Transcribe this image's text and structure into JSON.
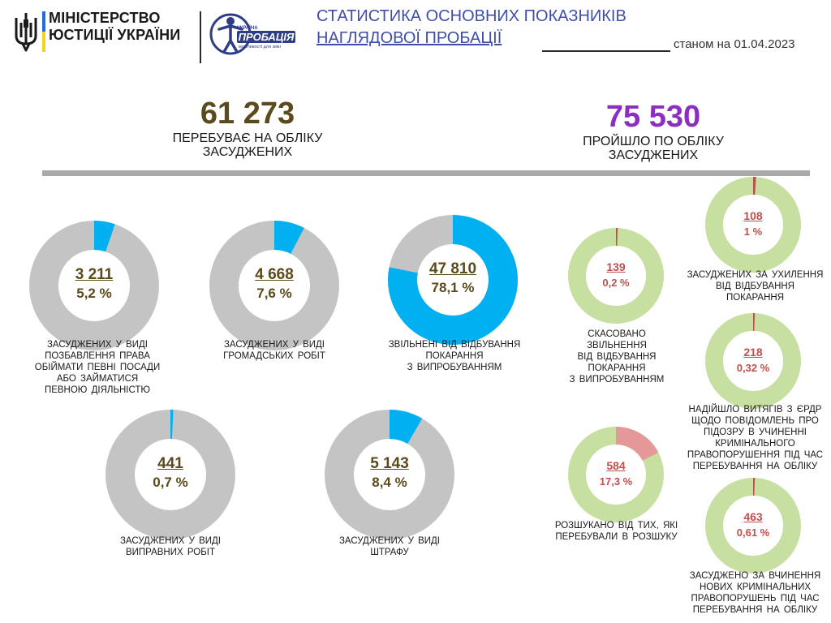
{
  "header": {
    "ministry_line1": "МІНІСТЕРСТВО",
    "ministry_line2": "ЮСТИЦІЇ УКРАЇНИ",
    "logo_text_top": "УКРАЇНА",
    "logo_text_main": "ПРОБАЦІЯ",
    "logo_text_bottom": "можливості для змін",
    "title_line1": "СТАТИСТИКА ОСНОВНИХ ПОКАЗНИКІВ",
    "title_line2": "НАГЛЯДОВОЇ ПРОБАЦІЇ",
    "as_of": "станом на 01.04.2023"
  },
  "colors": {
    "title": "#3f4fa8",
    "left_total": "#5b4a1c",
    "right_total": "#8a2fbf",
    "ring_bg_grey": "#c4c4c4",
    "ring_bg_green": "#c8dfa2",
    "accent_blue": "#00b0f0",
    "accent_red": "#c0504d",
    "accent_pink": "#e59898"
  },
  "chart_data": [
    {
      "type": "kpi",
      "value": "61 273",
      "caption_line1": "ПЕРЕБУВАЄ НА ОБЛІКУ",
      "caption_line2": "ЗАСУДЖЕНИХ"
    },
    {
      "type": "kpi",
      "value": "75 530",
      "caption_line1": "ПРОЙШЛО ПО ОБЛІКУ",
      "caption_line2": "ЗАСУДЖЕНИХ"
    },
    {
      "type": "pie",
      "group": "left",
      "count": "3 211",
      "percent": "5,2 %",
      "share": 0.052,
      "label_lines": [
        "ЗАСУДЖЕНИХ У ВИДІ",
        "ПОЗБАВЛЕННЯ ПРАВА",
        "ОБІЙМАТИ ПЕВНІ ПОСАДИ",
        "АБО ЗАЙМАТИСЯ",
        "ПЕВНОЮ ДІЯЛЬНІСТЮ"
      ]
    },
    {
      "type": "pie",
      "group": "left",
      "count": "4 668",
      "percent": "7,6 %",
      "share": 0.076,
      "label_lines": [
        "ЗАСУДЖЕНИХ У ВИДІ",
        "ГРОМАДСЬКИХ РОБІТ"
      ]
    },
    {
      "type": "pie",
      "group": "left",
      "count": "47 810",
      "percent": "78,1 %",
      "share": 0.781,
      "label_lines": [
        "ЗВІЛЬНЕНІ ВІД ВІДБУВАННЯ",
        "ПОКАРАННЯ",
        "З ВИПРОБУВАННЯМ"
      ]
    },
    {
      "type": "pie",
      "group": "left",
      "count": "441",
      "percent": "0,7 %",
      "share": 0.007,
      "label_lines": [
        "ЗАСУДЖЕНИХ У ВИДІ",
        "ВИПРАВНИХ РОБІТ"
      ]
    },
    {
      "type": "pie",
      "group": "left",
      "count": "5 143",
      "percent": "8,4 %",
      "share": 0.084,
      "label_lines": [
        "ЗАСУДЖЕНИХ У ВИДІ",
        "ШТРАФУ"
      ]
    },
    {
      "type": "pie",
      "group": "right",
      "count": "139",
      "percent": "0,2 %",
      "share": 0.002,
      "label_lines": [
        "СКАСОВАНО",
        "ЗВІЛЬНЕННЯ",
        "ВІД ВІДБУВАННЯ",
        "ПОКАРАННЯ",
        "З ВИПРОБУВАННЯМ"
      ]
    },
    {
      "type": "pie",
      "group": "right",
      "count": "108",
      "percent": "1 %",
      "share": 0.01,
      "label_lines": [
        "ЗАСУДЖЕНИХ ЗА УХИЛЕННЯ",
        "ВІД ВІДБУВАННЯ",
        "ПОКАРАННЯ"
      ]
    },
    {
      "type": "pie",
      "group": "right",
      "count": "218",
      "percent": "0,32 %",
      "share": 0.0032,
      "label_lines": [
        "НАДІЙШЛО ВИТЯГІВ З ЄРДР",
        "ЩОДО ПОВІДОМЛЕНЬ ПРО",
        "ПІДОЗРУ В УЧИНЕННІ",
        "КРИМІНАЛЬНОГО",
        "ПРАВОПОРУШЕННЯ ПІД ЧАС",
        "ПЕРЕБУВАННЯ НА ОБЛІКУ"
      ]
    },
    {
      "type": "pie",
      "group": "right",
      "count": "584",
      "percent": "17,3 %",
      "share": 0.173,
      "label_lines": [
        "РОЗШУКАНО ВІД ТИХ, ЯКІ",
        "ПЕРЕБУВАЛИ В РОЗШУКУ"
      ]
    },
    {
      "type": "pie",
      "group": "right",
      "count": "463",
      "percent": "0,61 %",
      "share": 0.0061,
      "label_lines": [
        "ЗАСУДЖЕНО ЗА ВЧИНЕННЯ",
        "НОВИХ КРИМІНАЛЬНИХ",
        "ПРАВОПОРУШЕНЬ ПІД ЧАС",
        "ПЕРЕБУВАННЯ НА ОБЛІКУ"
      ]
    }
  ]
}
